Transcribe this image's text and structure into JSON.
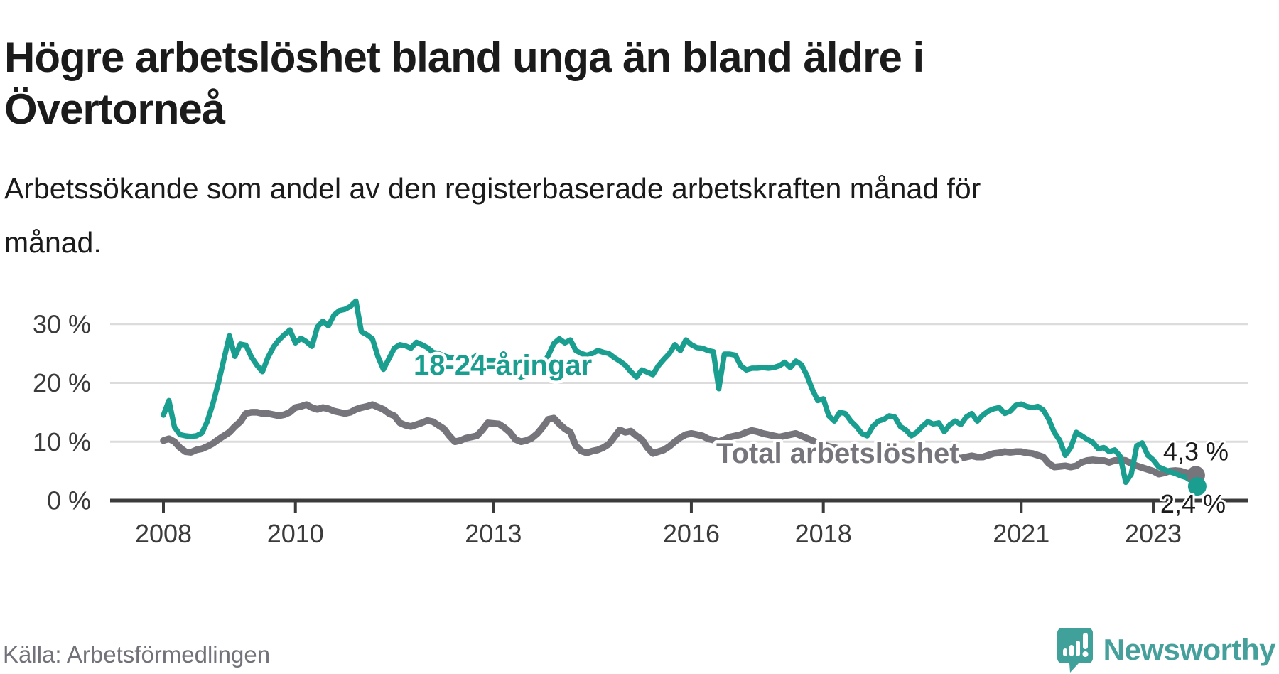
{
  "header": {
    "title_lines": [
      "Högre arbetslöshet bland unga än bland äldre i",
      "Övertorneå"
    ],
    "subtitle_lines": [
      "Arbetssökande som andel av den registerbaserade arbetskraften månad för",
      "månad."
    ]
  },
  "footer": {
    "source": "Källa: Arbetsförmedlingen",
    "brand": "Newsworthy"
  },
  "colors": {
    "youth_series": "#1a9e90",
    "total_series": "#76757b",
    "brand_teal": "#45a09b",
    "axis_text": "#3b3b3b",
    "gridline": "#dcdcdc"
  },
  "chart_data": {
    "type": "line",
    "title": "Högre arbetslöshet bland unga än bland äldre i Övertorneå",
    "subtitle": "Arbetssökande som andel av den registerbaserade arbetskraften månad för månad.",
    "xlabel": "",
    "ylabel": "",
    "x_unit": "month",
    "x_start": "2008-01",
    "x_end": "2023-09",
    "x_ticks": [
      2008,
      2010,
      2013,
      2016,
      2018,
      2021,
      2023
    ],
    "y_ticks": [
      0,
      10,
      20,
      30
    ],
    "y_tick_suffix": " %",
    "ylim": [
      0,
      36
    ],
    "grid": "horizontal",
    "legend_position": "inline-labels",
    "series": [
      {
        "name": "Total arbetslöshet",
        "color": "#76757b",
        "end_label": "4,3 %",
        "end_value": 4.3,
        "values": [
          10.2,
          10.5,
          10.0,
          9.0,
          8.3,
          8.2,
          8.6,
          8.8,
          9.2,
          9.7,
          10.4,
          11.0,
          11.6,
          12.6,
          13.4,
          14.8,
          15.0,
          15.0,
          14.8,
          14.8,
          14.6,
          14.4,
          14.6,
          15.0,
          15.8,
          16.0,
          16.3,
          15.8,
          15.5,
          15.8,
          15.6,
          15.2,
          15.0,
          14.8,
          15.0,
          15.5,
          15.8,
          16.0,
          16.3,
          15.9,
          15.5,
          14.8,
          14.4,
          13.2,
          12.8,
          12.6,
          12.9,
          13.2,
          13.6,
          13.4,
          12.8,
          12.2,
          11.0,
          10.0,
          10.2,
          10.6,
          10.8,
          11.0,
          12.0,
          13.2,
          13.1,
          13.0,
          12.4,
          11.6,
          10.4,
          10.0,
          10.2,
          10.6,
          11.4,
          12.5,
          13.8,
          14.0,
          13.0,
          12.2,
          11.6,
          9.3,
          8.4,
          8.1,
          8.4,
          8.6,
          9.0,
          9.6,
          10.8,
          12.0,
          11.6,
          11.8,
          11.0,
          10.4,
          9.0,
          8.0,
          8.3,
          8.6,
          9.2,
          10.0,
          10.7,
          11.2,
          11.4,
          11.2,
          11.0,
          10.5,
          10.3,
          10.0,
          10.4,
          10.8,
          11.0,
          11.2,
          11.6,
          11.9,
          11.7,
          11.4,
          11.2,
          11.0,
          10.8,
          11.0,
          11.2,
          11.4,
          11.0,
          10.6,
          10.2,
          9.8,
          9.5,
          9.2,
          9.0,
          8.8,
          8.6,
          8.5,
          8.4,
          8.5,
          8.6,
          8.5,
          8.3,
          8.2,
          8.0,
          7.9,
          7.8,
          8.0,
          8.1,
          7.9,
          7.7,
          7.7,
          7.6,
          7.5,
          7.4,
          7.4,
          7.3,
          7.2,
          7.4,
          7.6,
          7.4,
          7.4,
          7.7,
          8.0,
          8.1,
          8.3,
          8.2,
          8.3,
          8.3,
          8.1,
          8.0,
          7.7,
          7.4,
          6.3,
          5.7,
          5.8,
          5.9,
          5.7,
          5.9,
          6.5,
          6.8,
          6.9,
          6.8,
          6.8,
          6.5,
          6.8,
          6.9,
          6.8,
          6.3,
          5.9,
          5.6,
          5.3,
          5.0,
          4.5,
          4.7,
          5.0,
          5.1,
          5.0,
          4.7,
          4.5,
          4.3
        ]
      },
      {
        "name": "18-24-åringar",
        "color": "#1a9e90",
        "end_label": "2,4 %",
        "end_value": 2.4,
        "values": [
          14.5,
          17.0,
          12.5,
          11.2,
          11.0,
          10.9,
          11.0,
          11.5,
          13.5,
          16.5,
          20.0,
          24.0,
          28.0,
          24.5,
          26.6,
          26.4,
          24.4,
          23.0,
          21.9,
          24.3,
          26.1,
          27.3,
          28.2,
          29.0,
          26.8,
          27.6,
          27.0,
          26.2,
          29.5,
          30.5,
          29.7,
          31.5,
          32.3,
          32.5,
          33.0,
          33.9,
          28.7,
          28.2,
          27.5,
          24.5,
          22.3,
          24.1,
          25.9,
          26.5,
          26.3,
          25.9,
          26.9,
          26.5,
          26.0,
          25.2,
          25.0,
          24.6,
          24.3,
          24.3,
          23.8,
          23.5,
          24.0,
          24.7,
          24.2,
          23.8,
          23.8,
          23.4,
          23.1,
          22.5,
          21.5,
          21.0,
          21.3,
          21.7,
          21.9,
          23.0,
          24.7,
          26.7,
          27.5,
          26.8,
          27.3,
          25.5,
          25.0,
          24.7,
          25.0,
          25.5,
          25.2,
          25.0,
          24.3,
          23.7,
          23.0,
          21.9,
          21.0,
          22.2,
          21.8,
          21.4,
          22.9,
          24.0,
          25.0,
          26.5,
          25.5,
          27.3,
          26.5,
          26.0,
          25.9,
          25.5,
          25.3,
          19.0,
          24.9,
          24.9,
          24.7,
          22.9,
          22.2,
          22.5,
          22.5,
          22.6,
          22.5,
          22.6,
          22.9,
          23.5,
          22.6,
          23.7,
          23.1,
          21.3,
          18.9,
          17.0,
          17.3,
          14.4,
          13.5,
          15.0,
          14.8,
          13.5,
          12.6,
          11.4,
          11.0,
          12.6,
          13.5,
          13.8,
          14.4,
          14.2,
          12.6,
          12.0,
          11.0,
          11.6,
          12.6,
          13.4,
          13.0,
          13.2,
          11.7,
          12.9,
          13.5,
          12.9,
          14.2,
          14.8,
          13.5,
          14.5,
          15.2,
          15.6,
          15.8,
          14.8,
          15.2,
          16.2,
          16.4,
          16.0,
          15.8,
          16.0,
          15.4,
          13.8,
          11.6,
          10.2,
          7.7,
          9.0,
          11.6,
          11.0,
          10.4,
          9.9,
          8.8,
          9.0,
          8.3,
          8.6,
          7.5,
          3.1,
          4.5,
          9.3,
          9.8,
          7.7,
          6.9,
          5.7,
          5.3,
          4.9,
          4.6,
          4.2,
          3.9,
          3.3,
          2.4
        ]
      }
    ]
  }
}
